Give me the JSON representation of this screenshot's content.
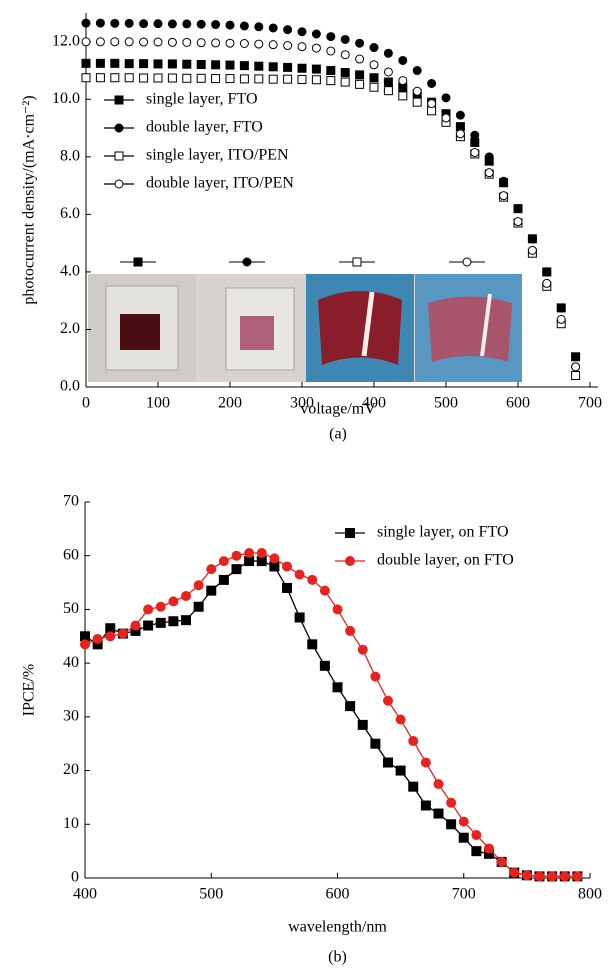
{
  "chart_data": [
    {
      "type": "scatter",
      "caption": "(a)",
      "x_label": "voltage/mV",
      "y_label": "photocurrent density/(mA·cm⁻²)",
      "xlim": [
        0,
        700
      ],
      "xticks": [
        0,
        100,
        200,
        300,
        400,
        500,
        600,
        700
      ],
      "ylim": [
        0,
        13
      ],
      "yticks": [
        {
          "value": 0,
          "label": "0.0"
        },
        {
          "value": 2,
          "label": "2.0"
        },
        {
          "value": 4,
          "label": "4.0"
        },
        {
          "value": 6,
          "label": "6.0"
        },
        {
          "value": 8,
          "label": "8.0"
        },
        {
          "value": 10,
          "label": "10.0"
        },
        {
          "value": 12,
          "label": "12.0"
        }
      ],
      "legend": "upper left",
      "x": [
        0,
        20,
        40,
        60,
        80,
        100,
        120,
        140,
        160,
        180,
        200,
        220,
        240,
        260,
        280,
        300,
        320,
        340,
        360,
        380,
        400,
        420,
        440,
        460,
        480,
        500,
        520,
        540,
        560,
        580,
        600,
        620,
        640,
        660,
        680
      ],
      "series": [
        {
          "name": "single layer, FTO",
          "color": "#000000",
          "marker": "square",
          "values": [
            11.25,
            11.25,
            11.25,
            11.24,
            11.24,
            11.23,
            11.23,
            11.22,
            11.21,
            11.2,
            11.19,
            11.17,
            11.15,
            11.13,
            11.11,
            11.08,
            11.05,
            11.0,
            10.93,
            10.85,
            10.75,
            10.6,
            10.42,
            10.2,
            9.9,
            9.5,
            9.05,
            8.5,
            7.85,
            7.1,
            6.2,
            5.15,
            4.0,
            2.75,
            1.05
          ]
        },
        {
          "name": "double layer, FTO",
          "color": "#000000",
          "marker": "circle",
          "values": [
            12.65,
            12.65,
            12.64,
            12.64,
            12.63,
            12.63,
            12.62,
            12.62,
            12.61,
            12.6,
            12.58,
            12.55,
            12.52,
            12.48,
            12.42,
            12.35,
            12.27,
            12.18,
            12.08,
            11.95,
            11.8,
            11.6,
            11.35,
            11.0,
            10.55,
            10.05,
            9.45,
            8.75,
            8.0,
            7.15,
            6.2,
            5.15,
            4.0,
            2.75,
            0.7
          ]
        },
        {
          "name": "single layer, ITO/PEN",
          "color": "#000000",
          "marker": "open square",
          "values": [
            10.75,
            10.75,
            10.75,
            10.75,
            10.74,
            10.74,
            10.74,
            10.73,
            10.73,
            10.72,
            10.72,
            10.71,
            10.71,
            10.7,
            10.7,
            10.69,
            10.68,
            10.65,
            10.6,
            10.52,
            10.42,
            10.3,
            10.12,
            9.9,
            9.6,
            9.2,
            8.7,
            8.1,
            7.4,
            6.6,
            5.7,
            4.65,
            3.5,
            2.2,
            0.4
          ]
        },
        {
          "name": "double layer, ITO/PEN",
          "color": "#000000",
          "marker": "open circle",
          "values": [
            12.0,
            12.0,
            12.0,
            12.0,
            11.99,
            11.99,
            11.98,
            11.98,
            11.97,
            11.96,
            11.95,
            11.94,
            11.92,
            11.9,
            11.87,
            11.83,
            11.78,
            11.68,
            11.55,
            11.4,
            11.2,
            10.95,
            10.65,
            10.28,
            9.85,
            9.35,
            8.8,
            8.15,
            7.45,
            6.65,
            5.75,
            4.75,
            3.6,
            2.35,
            0.7
          ]
        }
      ]
    },
    {
      "type": "line",
      "caption": "(b)",
      "x_label": "wavelength/nm",
      "y_label": "IPCE/%",
      "xlim": [
        400,
        800
      ],
      "xticks": [
        400,
        500,
        600,
        700,
        800
      ],
      "ylim": [
        0,
        70
      ],
      "yticks": [
        0,
        10,
        20,
        30,
        40,
        50,
        60,
        70
      ],
      "legend": "upper right",
      "x": [
        400,
        410,
        420,
        430,
        440,
        450,
        460,
        470,
        480,
        490,
        500,
        510,
        520,
        530,
        540,
        550,
        560,
        570,
        580,
        590,
        600,
        610,
        620,
        630,
        640,
        650,
        660,
        670,
        680,
        690,
        700,
        710,
        720,
        730,
        740,
        750,
        760,
        770,
        780,
        790
      ],
      "series": [
        {
          "name": "single layer, on FTO",
          "color": "#000000",
          "marker": "square",
          "values": [
            45,
            43.5,
            46.5,
            45.5,
            46,
            47,
            47.5,
            47.8,
            48,
            50.5,
            53.5,
            55.5,
            57.5,
            59,
            59,
            58,
            54,
            48.5,
            43.5,
            39.5,
            35.5,
            32,
            28.5,
            25,
            21.5,
            20,
            17,
            13.5,
            12,
            10,
            7.5,
            5,
            4.5,
            3,
            1,
            0.5,
            0.3,
            0.3,
            0.3,
            0.3
          ]
        },
        {
          "name": "double layer, on FTO",
          "color": "#e8231e",
          "marker": "circle",
          "values": [
            43.5,
            44.5,
            45,
            45.5,
            47,
            50,
            50.5,
            51.5,
            52.5,
            54.5,
            57.5,
            59,
            60,
            60.5,
            60.5,
            59.5,
            58,
            56.5,
            55.5,
            53.5,
            50,
            46,
            42.5,
            37.5,
            33,
            29.5,
            25.5,
            21.5,
            17.5,
            14,
            10.5,
            8,
            5.5,
            3,
            1,
            0.5,
            0.3,
            0.3,
            0.3,
            0.3
          ]
        }
      ]
    }
  ]
}
